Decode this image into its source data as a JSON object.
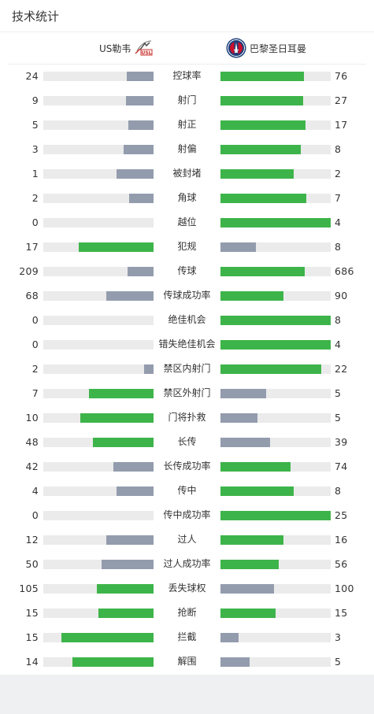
{
  "title": "技术统计",
  "teams": {
    "home": {
      "name": "US勒韦",
      "logo_icon": "us-lecce-logo-icon"
    },
    "away": {
      "name": "巴黎圣日耳曼",
      "logo_icon": "psg-logo-icon"
    }
  },
  "colors": {
    "higher": "#3db44a",
    "lower": "#939cad",
    "track": "#ebebeb"
  },
  "stats": [
    {
      "label": "控球率",
      "home": 24,
      "away": 76
    },
    {
      "label": "射门",
      "home": 9,
      "away": 27
    },
    {
      "label": "射正",
      "home": 5,
      "away": 17
    },
    {
      "label": "射偏",
      "home": 3,
      "away": 8
    },
    {
      "label": "被封堵",
      "home": 1,
      "away": 2
    },
    {
      "label": "角球",
      "home": 2,
      "away": 7
    },
    {
      "label": "越位",
      "home": 0,
      "away": 4
    },
    {
      "label": "犯规",
      "home": 17,
      "away": 8
    },
    {
      "label": "传球",
      "home": 209,
      "away": 686
    },
    {
      "label": "传球成功率",
      "home": 68,
      "away": 90
    },
    {
      "label": "绝佳机会",
      "home": 0,
      "away": 8
    },
    {
      "label": "错失绝佳机会",
      "home": 0,
      "away": 4
    },
    {
      "label": "禁区内射门",
      "home": 2,
      "away": 22
    },
    {
      "label": "禁区外射门",
      "home": 7,
      "away": 5
    },
    {
      "label": "门将扑救",
      "home": 10,
      "away": 5
    },
    {
      "label": "长传",
      "home": 48,
      "away": 39
    },
    {
      "label": "长传成功率",
      "home": 42,
      "away": 74
    },
    {
      "label": "传中",
      "home": 4,
      "away": 8
    },
    {
      "label": "传中成功率",
      "home": 0,
      "away": 25
    },
    {
      "label": "过人",
      "home": 12,
      "away": 16
    },
    {
      "label": "过人成功率",
      "home": 50,
      "away": 56
    },
    {
      "label": "丢失球权",
      "home": 105,
      "away": 100
    },
    {
      "label": "抢断",
      "home": 15,
      "away": 15
    },
    {
      "label": "拦截",
      "home": 15,
      "away": 3
    },
    {
      "label": "解围",
      "home": 14,
      "away": 5
    }
  ]
}
